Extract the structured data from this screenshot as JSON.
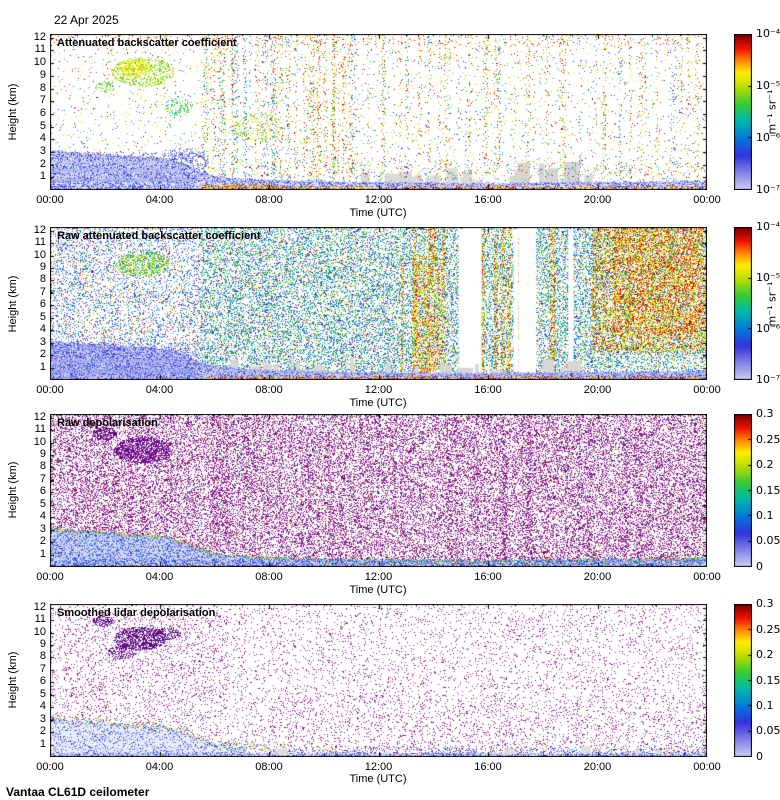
{
  "header": {
    "date": "22 Apr 2025"
  },
  "footer": {
    "label": "Vantaa CL61D ceilometer"
  },
  "axes": {
    "xlabel": "Time (UTC)",
    "ylabel": "Height (km)",
    "x_ticks": [
      "00:00",
      "04:00",
      "08:00",
      "12:00",
      "16:00",
      "20:00",
      "00:00"
    ],
    "y_ticks": [
      1,
      2,
      3,
      4,
      5,
      6,
      7,
      8,
      9,
      10,
      11,
      12
    ],
    "y_max": 12.3
  },
  "colormap": {
    "stops": [
      [
        0,
        "#ccccf4"
      ],
      [
        0.1,
        "#8888e8"
      ],
      [
        0.22,
        "#3333dd"
      ],
      [
        0.33,
        "#0077dd"
      ],
      [
        0.45,
        "#00bbaa"
      ],
      [
        0.55,
        "#33cc33"
      ],
      [
        0.66,
        "#bbdd00"
      ],
      [
        0.75,
        "#ffee00"
      ],
      [
        0.83,
        "#ff8800"
      ],
      [
        0.91,
        "#ee1100"
      ],
      [
        1,
        "#7a0000"
      ]
    ]
  },
  "colorbars": {
    "backscatter": {
      "unit": "m⁻¹ sr⁻¹",
      "scale": "log",
      "range": [
        "1e-7",
        "1e-4"
      ],
      "ticks": [
        [
          "10⁻⁴",
          1
        ],
        [
          "10⁻⁵",
          0.6667
        ],
        [
          "10⁻⁶",
          0.3333
        ],
        [
          "10⁻⁷",
          0
        ]
      ]
    },
    "depol": {
      "unit": "",
      "scale": "linear",
      "range": [
        0,
        0.3
      ],
      "ticks": [
        [
          "0.3",
          1
        ],
        [
          "0.25",
          0.8333
        ],
        [
          "0.2",
          0.6667
        ],
        [
          "0.15",
          0.5
        ],
        [
          "0.1",
          0.3333
        ],
        [
          "0.05",
          0.1667
        ],
        [
          "0",
          0
        ]
      ]
    }
  },
  "profile": [
    [
      0,
      3.1
    ],
    [
      0.5,
      3.0
    ],
    [
      1,
      2.9
    ],
    [
      1.5,
      2.85
    ],
    [
      2,
      2.75
    ],
    [
      2.5,
      2.7
    ],
    [
      3,
      2.6
    ],
    [
      3.5,
      2.55
    ],
    [
      4,
      2.5
    ],
    [
      4.3,
      2.4
    ],
    [
      4.6,
      2.2
    ],
    [
      5,
      1.9
    ],
    [
      5.3,
      1.6
    ],
    [
      5.6,
      1.35
    ],
    [
      6,
      1.1
    ],
    [
      6.5,
      0.95
    ],
    [
      7,
      0.85
    ],
    [
      7.5,
      0.8
    ],
    [
      8,
      0.75
    ],
    [
      9,
      0.7
    ],
    [
      10,
      0.65
    ],
    [
      11,
      0.6
    ],
    [
      12,
      0.6
    ],
    [
      13,
      0.55
    ],
    [
      14,
      0.55
    ],
    [
      15,
      0.5
    ],
    [
      16,
      0.5
    ],
    [
      17,
      0.55
    ],
    [
      18,
      0.55
    ],
    [
      19,
      0.6
    ],
    [
      20,
      0.6
    ],
    [
      21,
      0.6
    ],
    [
      22,
      0.65
    ],
    [
      23,
      0.65
    ],
    [
      24,
      0.7
    ]
  ],
  "chart_data": [
    {
      "type": "heatmap",
      "title": "Attenuated backscatter coefficient",
      "xlabel": "Time (UTC)",
      "ylabel": "Height (km)",
      "x_range": [
        0,
        24
      ],
      "y_range": [
        0,
        12.3
      ],
      "colorbar": "backscatter",
      "seed": 11,
      "layers": [
        {
          "kind": "patches",
          "n": 26,
          "t0": 7.5,
          "t1": 20,
          "hbase": 0.05,
          "hmax": 1.3,
          "wmax": 0.5,
          "color": "#dbdbdb"
        },
        {
          "kind": "patches",
          "n": 12,
          "t0": 16.8,
          "t1": 19.6,
          "hbase": 0.1,
          "hmax": 1.7,
          "wmax": 0.6,
          "color": "#d6d6d6"
        },
        {
          "kind": "speckle",
          "t0": 0,
          "t1": 24,
          "h0": 1.1,
          "h1": 12.3,
          "density": 0.02,
          "cmap": [
            0.62,
            1
          ]
        },
        {
          "kind": "speckle",
          "t0": 0,
          "t1": 24,
          "h0": 1.1,
          "h1": 12.3,
          "density": 0.012,
          "cmap": [
            0.22,
            0.55
          ]
        },
        {
          "kind": "speckle",
          "t0": 0,
          "t1": 24,
          "h0": 11.4,
          "h1": 12.3,
          "density": 0.05,
          "cmap": [
            0.78,
            1
          ]
        },
        {
          "kind": "streaks",
          "n": 70,
          "t0": 5.5,
          "t1": 24,
          "wmin": 0.05,
          "wmax": 0.18,
          "h0": 0.8,
          "h1": 12.3,
          "density": 0.1,
          "cmap": [
            0.5,
            1
          ]
        },
        {
          "kind": "streaks",
          "n": 35,
          "t0": 5.5,
          "t1": 24,
          "wmin": 0.05,
          "wmax": 0.15,
          "h0": 0.8,
          "h1": 12.3,
          "density": 0.06,
          "cmap": [
            0.2,
            0.5
          ]
        },
        {
          "kind": "speckle",
          "t0": 7,
          "t1": 24,
          "h0": 0.7,
          "h1": 2.2,
          "density": 0.05,
          "cmap": [
            0.05,
            1
          ]
        },
        {
          "kind": "blob",
          "t": 3.4,
          "h": 9.3,
          "rt": 1.15,
          "rh": 1.15,
          "density": 0.45,
          "cmap": [
            0.55,
            0.72
          ]
        },
        {
          "kind": "blob",
          "t": 3.1,
          "h": 9.6,
          "rt": 0.6,
          "rh": 0.7,
          "density": 0.6,
          "cmap": [
            0.68,
            0.78
          ]
        },
        {
          "kind": "blob",
          "t": 2,
          "h": 8.1,
          "rt": 0.35,
          "rh": 0.45,
          "density": 0.35,
          "cmap": [
            0.5,
            0.65
          ]
        },
        {
          "kind": "blob",
          "t": 4.7,
          "h": 6.6,
          "rt": 0.5,
          "rh": 0.8,
          "density": 0.3,
          "cmap": [
            0.45,
            0.62
          ]
        },
        {
          "kind": "blob",
          "t": 7.6,
          "h": 5,
          "rt": 0.9,
          "rh": 1.2,
          "density": 0.15,
          "cmap": [
            0.55,
            0.75
          ]
        },
        {
          "kind": "blob",
          "t": 4.9,
          "h": 2.3,
          "rt": 0.9,
          "rh": 1,
          "density": 0.28,
          "cmap": [
            0.05,
            0.28
          ]
        },
        {
          "kind": "bl",
          "wash": "#dfe4f8",
          "density": 0.45,
          "cmap": [
            0.02,
            0.3
          ],
          "edge_density": 1.2,
          "edge_cmap": [
            0,
            0.2
          ]
        },
        {
          "kind": "wash",
          "t0": 0,
          "t1": 4.8,
          "h0": 1.4,
          "h1": 1.7,
          "color": "#b9c1ef"
        },
        {
          "kind": "wash",
          "t0": 0,
          "t1": 5.2,
          "h0": 0.65,
          "h1": 0.9,
          "color": "#b2bbed"
        },
        {
          "kind": "wash",
          "t0": 0,
          "t1": 4.5,
          "h0": 2.1,
          "h1": 2.3,
          "color": "#c3caf2"
        },
        {
          "kind": "speckle",
          "t0": 0,
          "t1": 5.3,
          "h0": 0,
          "h1": 3.0,
          "density": 0.18,
          "cmap": [
            0.02,
            0.25
          ]
        },
        {
          "kind": "speckle",
          "t0": 5.5,
          "t1": 24,
          "h0": 0,
          "h1": 0.3,
          "density": 0.5,
          "cmap": [
            0.7,
            1
          ]
        },
        {
          "kind": "speckle",
          "t0": 5.5,
          "t1": 8.5,
          "h0": 0,
          "h1": 0.45,
          "density": 0.4,
          "cmap": [
            0.65,
            1
          ]
        }
      ]
    },
    {
      "type": "heatmap",
      "title": "Raw attenuated backscatter coefficient",
      "xlabel": "Time (UTC)",
      "ylabel": "Height (km)",
      "x_range": [
        0,
        24
      ],
      "y_range": [
        0,
        12.3
      ],
      "colorbar": "backscatter",
      "seed": 22,
      "layers": [
        {
          "kind": "speckle",
          "t0": 0,
          "t1": 5.5,
          "h0": 0,
          "h1": 12.3,
          "density": 0.2,
          "cmap": [
            0.08,
            0.45
          ]
        },
        {
          "kind": "speckle",
          "t0": 5.5,
          "t1": 20,
          "h0": 0,
          "h1": 12.3,
          "density": 0.34,
          "cmap": [
            0.15,
            0.6
          ]
        },
        {
          "kind": "speckle",
          "t0": 20,
          "t1": 24,
          "h0": 0,
          "h1": 12.3,
          "density": 0.3,
          "cmap": [
            0.2,
            0.6
          ]
        },
        {
          "kind": "speckle",
          "t0": 0,
          "t1": 24,
          "h0": 0,
          "h1": 12.3,
          "density": 0.05,
          "cmap": [
            0.62,
            1
          ]
        },
        {
          "kind": "blob",
          "t": 3.4,
          "h": 9.3,
          "rt": 1,
          "rh": 1,
          "density": 0.5,
          "cmap": [
            0.5,
            0.7
          ]
        },
        {
          "kind": "speckle",
          "t0": 19.8,
          "t1": 24,
          "h0": 2.2,
          "h1": 12.3,
          "density": 0.4,
          "cmap": [
            0.6,
            1
          ]
        },
        {
          "kind": "speckle",
          "t0": 20.6,
          "t1": 23.8,
          "h0": 3.5,
          "h1": 12.3,
          "density": 0.3,
          "cmap": [
            0.7,
            0.97
          ]
        },
        {
          "kind": "streaks",
          "n": 12,
          "t0": 12.8,
          "t1": 19.3,
          "wmin": 0.1,
          "wmax": 0.3,
          "h0": 0.5,
          "h1": 12.3,
          "density": 0.5,
          "cmap": [
            0.6,
            0.97
          ]
        },
        {
          "kind": "streaks",
          "n": 6,
          "t0": 12.8,
          "t1": 14.2,
          "wmin": 0.08,
          "wmax": 0.2,
          "h0": 0.5,
          "h1": 10,
          "density": 0.5,
          "cmap": [
            0.6,
            0.95
          ]
        },
        {
          "kind": "gaps",
          "n": 10,
          "t0": 14,
          "t1": 19.6,
          "wmin": 0.15,
          "wmax": 0.45,
          "h0": 0,
          "h1": 12.3
        },
        {
          "kind": "patches",
          "n": 30,
          "t0": 6.5,
          "t1": 19.5,
          "hbase": 0.05,
          "hmax": 1.4,
          "wmax": 0.5,
          "color": "#d7d7d7"
        },
        {
          "kind": "bl",
          "wash": "#ccd3f2",
          "density": 0.55,
          "cmap": [
            0,
            0.3
          ],
          "edge_density": 1.5,
          "edge_cmap": [
            0,
            0.15
          ]
        },
        {
          "kind": "wash",
          "t0": 0,
          "t1": 5,
          "h0": 1.4,
          "h1": 1.65,
          "color": "#aab4ec"
        },
        {
          "kind": "wash",
          "t0": 0,
          "t1": 5.4,
          "h0": 0.6,
          "h1": 0.85,
          "color": "#a3aeea"
        },
        {
          "kind": "speckle",
          "t0": 0,
          "t1": 5.5,
          "h0": 0,
          "h1": 3,
          "density": 0.25,
          "cmap": [
            0.04,
            0.22
          ]
        },
        {
          "kind": "speckle",
          "t0": 5.5,
          "t1": 24,
          "h0": 0,
          "h1": 0.3,
          "density": 0.55,
          "cmap": [
            0.7,
            1
          ]
        }
      ]
    },
    {
      "type": "heatmap",
      "title": "Raw depolarisation",
      "xlabel": "Time (UTC)",
      "ylabel": "Height (km)",
      "x_range": [
        0,
        24
      ],
      "y_range": [
        0,
        12.3
      ],
      "colorbar": "depol",
      "seed": 33,
      "layers": [
        {
          "kind": "speckle",
          "t0": 0,
          "t1": 24,
          "h0": 0,
          "h1": 12.3,
          "density": 0.4,
          "colors": [
            "#8e1d8e",
            "#7c137c",
            "#9a2b9a",
            "#6d0a6d",
            "#a63ba6"
          ]
        },
        {
          "kind": "streaks",
          "n": 50,
          "t0": 0,
          "t1": 24,
          "wmin": 0.05,
          "wmax": 0.2,
          "h0": 0,
          "h1": 12.3,
          "density": 0.12,
          "colors": [
            "#8e1d8e",
            "#7c137c",
            "#9a2b9a"
          ]
        },
        {
          "kind": "speckle",
          "t0": 0,
          "t1": 24,
          "h0": 0,
          "h1": 12.3,
          "density": 0.015,
          "cmap": [
            0.2,
            0.95
          ]
        },
        {
          "kind": "blob",
          "t": 3.4,
          "h": 9.4,
          "rt": 1.05,
          "rh": 1.05,
          "density": 0.9,
          "colors": [
            "#6b0b8f",
            "#5a0879",
            "#7a16a0"
          ]
        },
        {
          "kind": "blob",
          "t": 2,
          "h": 10.7,
          "rt": 0.45,
          "rh": 0.5,
          "density": 0.8,
          "colors": [
            "#6b0b8f",
            "#5a0879"
          ]
        },
        {
          "kind": "bl",
          "wash": "#d4daf4",
          "density": 0.4,
          "cmap": [
            0.05,
            0.35
          ],
          "edge_density": 1.6,
          "edge_cmap": [
            0.25,
            0.95
          ]
        },
        {
          "kind": "speckle",
          "t0": 0,
          "t1": 24,
          "h0": 0,
          "h1": 0.6,
          "density": 0.35,
          "cmap": [
            0.02,
            0.3
          ]
        },
        {
          "kind": "speckle",
          "t0": 0,
          "t1": 24,
          "h0": 0,
          "h1": 0.2,
          "density": 0.2,
          "cmap": [
            0.3,
            0.95
          ]
        }
      ]
    },
    {
      "type": "heatmap",
      "title": "Smoothed lidar depolarisation",
      "xlabel": "Time (UTC)",
      "ylabel": "Height (km)",
      "x_range": [
        0,
        24
      ],
      "y_range": [
        0,
        12.3
      ],
      "colorbar": "depol",
      "seed": 44,
      "layers": [
        {
          "kind": "speckle",
          "t0": 0,
          "t1": 24,
          "h0": 0.3,
          "h1": 12.3,
          "density": 0.075,
          "colors": [
            "#8e1d8e",
            "#7c137c",
            "#9a2b9a",
            "#a63ba6"
          ]
        },
        {
          "kind": "speckle",
          "t0": 0.5,
          "t1": 6.5,
          "h0": 3,
          "h1": 11.5,
          "density": 0.05,
          "colors": [
            "#8e1d8e",
            "#7c137c",
            "#9a2b9a"
          ]
        },
        {
          "kind": "speckle",
          "t0": 8,
          "t1": 24,
          "h0": 0.3,
          "h1": 5,
          "density": 0.035,
          "colors": [
            "#8e1d8e",
            "#9a2b9a"
          ]
        },
        {
          "kind": "blob",
          "t": 3.3,
          "h": 9.5,
          "rt": 0.95,
          "rh": 0.95,
          "density": 0.85,
          "colors": [
            "#5e0a82",
            "#6d129a",
            "#4e0770"
          ]
        },
        {
          "kind": "blob",
          "t": 1.95,
          "h": 10.9,
          "rt": 0.4,
          "rh": 0.45,
          "density": 0.8,
          "colors": [
            "#5e0a82",
            "#6d129a"
          ]
        },
        {
          "kind": "blob",
          "t": 2.6,
          "h": 8.4,
          "rt": 0.5,
          "rh": 0.55,
          "density": 0.5,
          "colors": [
            "#5e0a82",
            "#6d129a"
          ]
        },
        {
          "kind": "blob",
          "t": 4.3,
          "h": 9.9,
          "rt": 0.5,
          "rh": 0.5,
          "density": 0.5,
          "colors": [
            "#5e0a82",
            "#4e0770"
          ]
        },
        {
          "kind": "bl",
          "t0": 0,
          "t1": 7.2,
          "wash": "#e9edfc",
          "density": 0.2,
          "cmap": [
            0.05,
            0.3
          ],
          "edge_density": 0,
          "edge_cmap": [
            0,
            0.2
          ]
        },
        {
          "kind": "wash",
          "t0": 0,
          "t1": 24,
          "h0": 0,
          "h1": 0.3,
          "color": "#dde2f8"
        },
        {
          "kind": "speckle",
          "t0": 0,
          "t1": 24,
          "h0": 0,
          "h1": 0.35,
          "density": 0.4,
          "cmap": [
            0.05,
            0.3
          ]
        },
        {
          "kind": "edge",
          "t0": 0,
          "t1": 8,
          "density": 1.4,
          "thick": 0.28,
          "cmap": [
            0.15,
            1
          ]
        },
        {
          "kind": "edge",
          "t0": 8,
          "t1": 24,
          "density": 0.3,
          "thick": 0.3,
          "cmap": [
            0.15,
            1
          ]
        },
        {
          "kind": "speckle",
          "t0": 7,
          "t1": 24,
          "h0": 0.2,
          "h1": 1.3,
          "density": 0.02,
          "cmap": [
            0.2,
            0.9
          ]
        },
        {
          "kind": "speckle",
          "t0": 8,
          "t1": 24,
          "h0": 0,
          "h1": 0.8,
          "density": 0.1,
          "cmap": [
            0.05,
            0.35
          ]
        },
        {
          "kind": "patches",
          "n": 8,
          "t0": 8,
          "t1": 23,
          "hbase": 0.1,
          "hmax": 0.6,
          "wmax": 0.3,
          "color": "#dedede"
        }
      ]
    }
  ]
}
